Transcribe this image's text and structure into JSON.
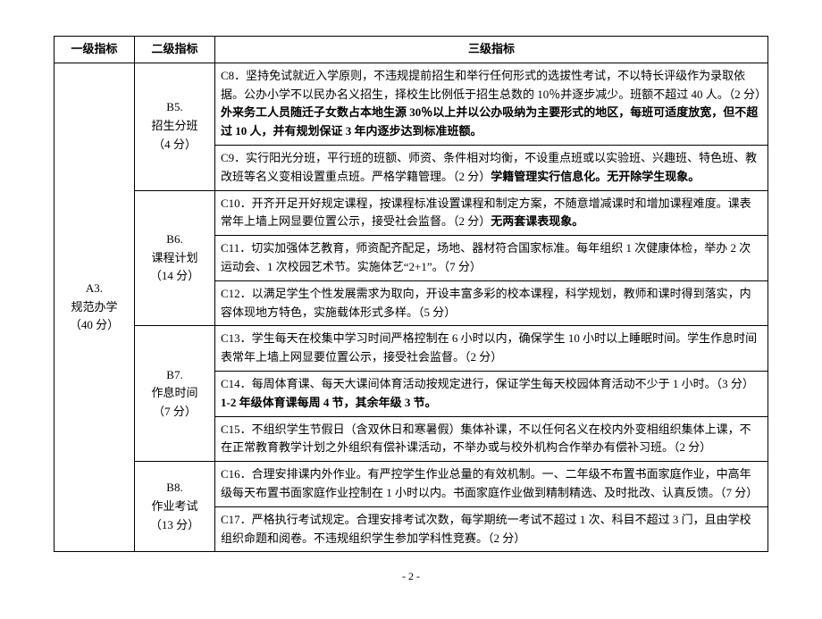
{
  "headers": {
    "col1": "一级指标",
    "col2": "二级指标",
    "col3": "三级指标"
  },
  "level1": {
    "a3": "A3.\n规范办学\n（40 分）"
  },
  "level2": {
    "b5": "B5.\n招生分班\n（4 分）",
    "b6": "B6.\n课程计划\n（14 分）",
    "b7": "B7.\n作息时间\n（7 分）",
    "b8": "B8.\n作业考试\n（13 分）"
  },
  "rows": {
    "c8a": "C8．坚持免试就近入学原则，不违规提前招生和举行任何形式的选拔性考试，不以特长评级作为录取依据。公办小学不以民办名义招生，择校生比例低于招生总数的 10％并逐步减少。班额不超过 40 人。（2 分）",
    "c8b": "外来务工人员随迁子女数占本地生源 30％以上并以公办吸纳为主要形式的地区，每班可适度放宽，但不超过 10 人，并有规划保证 3 年内逐步达到标准班额。",
    "c9a": "C9．实行阳光分班，平行班的班额、师资、条件相对均衡，不设重点班或以实验班、兴趣班、特色班、教改班等名义变相设置重点班。严格学籍管理。（2 分）",
    "c9b": "学籍管理实行信息化。无开除学生现象。",
    "c10a": "C10．开齐开足开好规定课程，按课程标准设置课程和制定方案，不随意增减课时和增加课程难度。课表常年上墙上网显要位置公示，接受社会监督。（2 分）",
    "c10b": "无两套课表现象。",
    "c11": "C11．切实加强体艺教育，师资配齐配足，场地、器材符合国家标准。每年组织 1 次健康体检，举办 2 次运动会、1 次校园艺术节。实施体艺“2+1”。（7 分）",
    "c12": "C12．以满足学生个性发展需求为取向，开设丰富多彩的校本课程，科学规划，教师和课时得到落实，内容体现地方特色，实施载体形式多样。（5 分）",
    "c13": "C13．学生每天在校集中学习时间严格控制在 6 小时以内，确保学生 10 小时以上睡眠时间。学生作息时间表常年上墙上网显要位置公示，接受社会监督。（2 分）",
    "c14a": "C14．每周体育课、每天大课间体育活动按规定进行，保证学生每天校园体育活动不少于 1 小时。（3 分）",
    "c14b": "1-2 年级体育课每周 4 节，其余年级 3 节。",
    "c15": "C15．不组织学生节假日（含双休日和寒暑假）集体补课，不以任何名义在校内外变相组织集体上课，不在正常教育教学计划之外组织有偿补课活动，不举办或与校外机构合作举办有偿补习班。（2 分）",
    "c16": "C16．合理安排课内外作业。有严控学生作业总量的有效机制。一、二年级不布置书面家庭作业，中高年级每天布置书面家庭作业控制在 1 小时以内。书面家庭作业做到精制精选、及时批改、认真反馈。（7 分）",
    "c17": "C17．严格执行考试规定。合理安排考试次数，每学期统一考试不超过 1 次、科目不超过 3 门，且由学校组织命题和阅卷。不违规组织学生参加学科性竞赛。（2 分）"
  },
  "page": "- 2 -"
}
